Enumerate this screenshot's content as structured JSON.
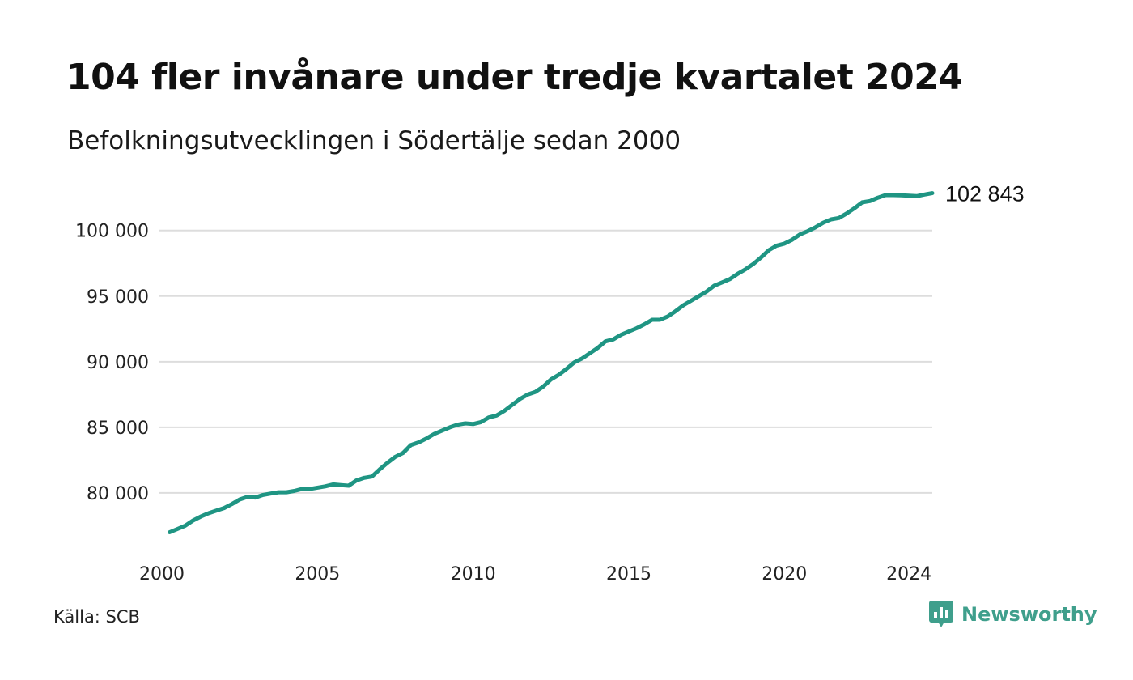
{
  "title": "104 fler invånare under tredje kvartalet 2024",
  "subtitle": "Befolkningsutvecklingen i Södertälje sedan 2000",
  "source": "Källa: SCB",
  "brand": {
    "name": "Newsworthy",
    "icon": "newsworthy-logo-icon",
    "color": "#3f9f8c"
  },
  "chart_data": {
    "type": "line",
    "line_color": "#1f9583",
    "grid": true,
    "xlim": [
      2000,
      2024.75
    ],
    "ylim": [
      75800,
      103500
    ],
    "y_ticks": [
      {
        "value": 80000,
        "label": "80 000"
      },
      {
        "value": 85000,
        "label": "85 000"
      },
      {
        "value": 90000,
        "label": "90 000"
      },
      {
        "value": 95000,
        "label": "95 000"
      },
      {
        "value": 100000,
        "label": "100 000"
      }
    ],
    "x_ticks": [
      {
        "value": 2000,
        "label": "2000"
      },
      {
        "value": 2005,
        "label": "2005"
      },
      {
        "value": 2010,
        "label": "2010"
      },
      {
        "value": 2015,
        "label": "2015"
      },
      {
        "value": 2020,
        "label": "2020"
      },
      {
        "value": 2024,
        "label": "2024"
      }
    ],
    "end_label": "102 843",
    "series": [
      {
        "points": [
          [
            2000.25,
            77000
          ],
          [
            2000.5,
            77250
          ],
          [
            2000.75,
            77500
          ],
          [
            2001.0,
            77900
          ],
          [
            2001.25,
            78200
          ],
          [
            2001.5,
            78450
          ],
          [
            2001.75,
            78650
          ],
          [
            2002.0,
            78850
          ],
          [
            2002.25,
            79150
          ],
          [
            2002.5,
            79500
          ],
          [
            2002.75,
            79700
          ],
          [
            2003.0,
            79650
          ],
          [
            2003.25,
            79850
          ],
          [
            2003.5,
            79950
          ],
          [
            2003.75,
            80050
          ],
          [
            2004.0,
            80050
          ],
          [
            2004.25,
            80150
          ],
          [
            2004.5,
            80300
          ],
          [
            2004.75,
            80300
          ],
          [
            2005.0,
            80400
          ],
          [
            2005.25,
            80500
          ],
          [
            2005.5,
            80650
          ],
          [
            2005.75,
            80600
          ],
          [
            2006.0,
            80550
          ],
          [
            2006.25,
            80950
          ],
          [
            2006.5,
            81150
          ],
          [
            2006.75,
            81250
          ],
          [
            2007.0,
            81800
          ],
          [
            2007.25,
            82300
          ],
          [
            2007.5,
            82750
          ],
          [
            2007.75,
            83050
          ],
          [
            2008.0,
            83650
          ],
          [
            2008.25,
            83850
          ],
          [
            2008.5,
            84150
          ],
          [
            2008.75,
            84500
          ],
          [
            2009.0,
            84750
          ],
          [
            2009.25,
            85000
          ],
          [
            2009.5,
            85200
          ],
          [
            2009.75,
            85300
          ],
          [
            2010.0,
            85250
          ],
          [
            2010.25,
            85400
          ],
          [
            2010.5,
            85750
          ],
          [
            2010.75,
            85900
          ],
          [
            2011.0,
            86250
          ],
          [
            2011.25,
            86700
          ],
          [
            2011.5,
            87150
          ],
          [
            2011.75,
            87500
          ],
          [
            2012.0,
            87700
          ],
          [
            2012.25,
            88100
          ],
          [
            2012.5,
            88650
          ],
          [
            2012.75,
            89000
          ],
          [
            2013.0,
            89450
          ],
          [
            2013.25,
            89950
          ],
          [
            2013.5,
            90250
          ],
          [
            2013.75,
            90650
          ],
          [
            2014.0,
            91050
          ],
          [
            2014.25,
            91550
          ],
          [
            2014.5,
            91700
          ],
          [
            2014.75,
            92050
          ],
          [
            2015.0,
            92300
          ],
          [
            2015.25,
            92550
          ],
          [
            2015.5,
            92850
          ],
          [
            2015.75,
            93200
          ],
          [
            2016.0,
            93200
          ],
          [
            2016.25,
            93450
          ],
          [
            2016.5,
            93850
          ],
          [
            2016.75,
            94300
          ],
          [
            2017.0,
            94650
          ],
          [
            2017.25,
            95000
          ],
          [
            2017.5,
            95350
          ],
          [
            2017.75,
            95800
          ],
          [
            2018.0,
            96050
          ],
          [
            2018.25,
            96300
          ],
          [
            2018.5,
            96700
          ],
          [
            2018.75,
            97050
          ],
          [
            2019.0,
            97450
          ],
          [
            2019.25,
            97950
          ],
          [
            2019.5,
            98500
          ],
          [
            2019.75,
            98850
          ],
          [
            2020.0,
            99000
          ],
          [
            2020.25,
            99300
          ],
          [
            2020.5,
            99700
          ],
          [
            2020.75,
            99950
          ],
          [
            2021.0,
            100250
          ],
          [
            2021.25,
            100600
          ],
          [
            2021.5,
            100850
          ],
          [
            2021.75,
            100950
          ],
          [
            2022.0,
            101300
          ],
          [
            2022.25,
            101700
          ],
          [
            2022.5,
            102150
          ],
          [
            2022.75,
            102250
          ],
          [
            2023.0,
            102500
          ],
          [
            2023.25,
            102700
          ],
          [
            2023.5,
            102700
          ],
          [
            2023.75,
            102680
          ],
          [
            2024.0,
            102650
          ],
          [
            2024.25,
            102620
          ],
          [
            2024.5,
            102739
          ],
          [
            2024.75,
            102843
          ]
        ]
      }
    ]
  }
}
